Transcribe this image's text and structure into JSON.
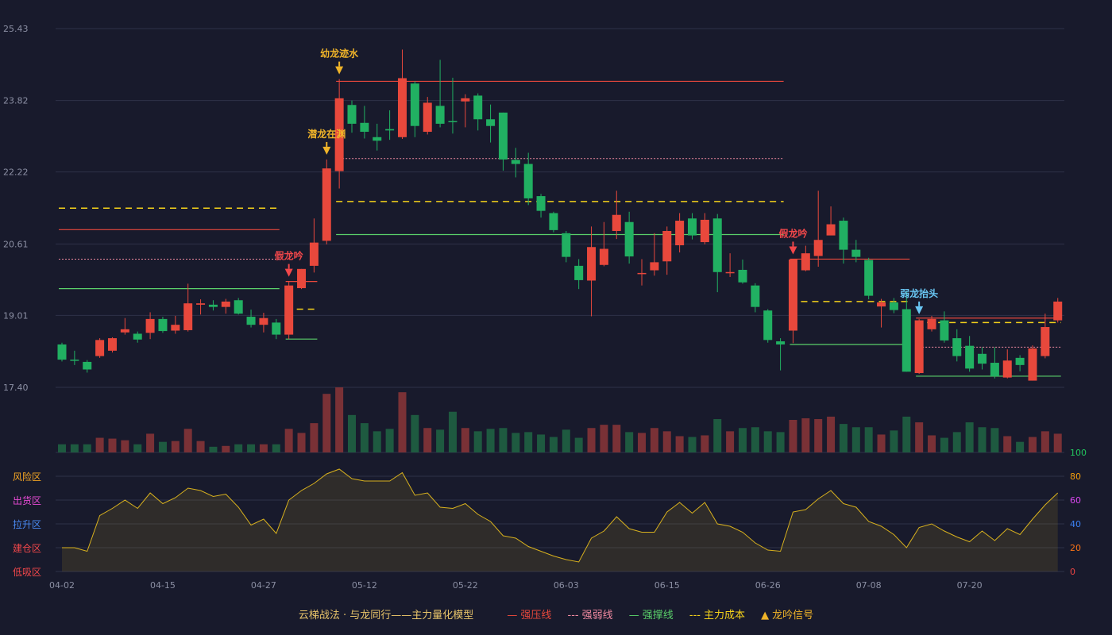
{
  "colors": {
    "background": "#181a2c",
    "up": "#e8483c",
    "down": "#21b062",
    "vol_up": "#7a3136",
    "vol_down": "#1e5a40",
    "resistance": "#e8483c",
    "weak": "#f08aa0",
    "support": "#5ad06a",
    "cost": "#f5d21a",
    "signal_gold": "#f0b429",
    "signal_red": "#f2474a",
    "signal_blue": "#6ac8f5",
    "grid": "#2e3148",
    "axis_text": "#8b8fa3",
    "osc_line": "#d8b11e"
  },
  "chart_data": {
    "type": "candlestick",
    "price_axis": {
      "ticks": [
        "25.43",
        "23.82",
        "22.22",
        "20.61",
        "19.01",
        "17.40"
      ],
      "ylim": [
        17.4,
        25.43
      ]
    },
    "x_ticks": [
      {
        "index": 0,
        "label": "04-02"
      },
      {
        "index": 8,
        "label": "04-15"
      },
      {
        "index": 16,
        "label": "04-27"
      },
      {
        "index": 24,
        "label": "05-12"
      },
      {
        "index": 32,
        "label": "05-22"
      },
      {
        "index": 40,
        "label": "06-03"
      },
      {
        "index": 48,
        "label": "06-15"
      },
      {
        "index": 56,
        "label": "06-26"
      },
      {
        "index": 64,
        "label": "07-08"
      },
      {
        "index": 72,
        "label": "07-20"
      }
    ],
    "candles": [
      [
        18.36,
        18.02,
        18.4,
        17.98
      ],
      [
        18.02,
        18.0,
        18.22,
        17.9
      ],
      [
        17.97,
        17.8,
        18.01,
        17.73
      ],
      [
        18.1,
        18.46,
        18.5,
        18.06
      ],
      [
        18.22,
        18.5,
        18.52,
        18.18
      ],
      [
        18.63,
        18.7,
        18.95,
        18.58
      ],
      [
        18.6,
        18.47,
        18.65,
        18.4
      ],
      [
        18.62,
        18.93,
        19.08,
        18.48
      ],
      [
        18.93,
        18.66,
        18.98,
        18.62
      ],
      [
        18.67,
        18.8,
        19.0,
        18.6
      ],
      [
        18.68,
        19.28,
        19.72,
        18.65
      ],
      [
        19.25,
        19.28,
        19.37,
        19.03
      ],
      [
        19.25,
        19.2,
        19.35,
        19.12
      ],
      [
        19.2,
        19.32,
        19.38,
        19.05
      ],
      [
        19.35,
        19.05,
        19.4,
        19.03
      ],
      [
        18.98,
        18.8,
        19.14,
        18.74
      ],
      [
        18.8,
        18.95,
        19.07,
        18.63
      ],
      [
        18.85,
        18.58,
        18.93,
        18.48
      ],
      [
        18.58,
        19.68,
        19.77,
        18.48
      ],
      [
        19.62,
        20.05,
        20.05,
        19.6
      ],
      [
        20.12,
        20.64,
        21.18,
        19.97
      ],
      [
        20.68,
        22.3,
        22.5,
        20.6
      ],
      [
        22.24,
        23.87,
        24.3,
        21.85
      ],
      [
        23.72,
        23.3,
        23.82,
        23.1
      ],
      [
        23.32,
        23.12,
        23.7,
        22.97
      ],
      [
        23.0,
        22.92,
        23.3,
        22.7
      ],
      [
        23.18,
        23.15,
        23.6,
        22.94
      ],
      [
        23.0,
        24.32,
        24.96,
        22.96
      ],
      [
        24.2,
        23.25,
        24.25,
        23.0
      ],
      [
        23.12,
        23.77,
        23.9,
        23.06
      ],
      [
        23.7,
        23.3,
        24.73,
        23.22
      ],
      [
        23.36,
        23.35,
        24.33,
        23.08
      ],
      [
        23.8,
        23.87,
        23.96,
        23.22
      ],
      [
        23.93,
        23.4,
        23.98,
        23.15
      ],
      [
        23.4,
        23.25,
        23.73,
        22.88
      ],
      [
        23.55,
        22.5,
        23.55,
        22.25
      ],
      [
        22.49,
        22.4,
        22.76,
        22.1
      ],
      [
        22.4,
        21.63,
        22.65,
        21.48
      ],
      [
        21.68,
        21.35,
        21.73,
        21.2
      ],
      [
        21.3,
        20.92,
        21.33,
        20.87
      ],
      [
        20.85,
        20.32,
        20.9,
        20.2
      ],
      [
        20.12,
        19.8,
        20.27,
        19.6
      ],
      [
        19.79,
        20.54,
        21.0,
        18.99
      ],
      [
        20.14,
        20.5,
        21.1,
        20.11
      ],
      [
        20.9,
        21.26,
        21.8,
        20.72
      ],
      [
        21.1,
        20.33,
        21.33,
        20.17
      ],
      [
        19.95,
        19.96,
        20.27,
        19.68
      ],
      [
        20.02,
        20.2,
        20.85,
        19.9
      ],
      [
        20.22,
        20.9,
        21.0,
        19.92
      ],
      [
        20.58,
        21.13,
        21.3,
        20.42
      ],
      [
        21.18,
        20.8,
        21.3,
        20.71
      ],
      [
        20.65,
        21.15,
        21.3,
        20.6
      ],
      [
        21.18,
        19.98,
        21.28,
        19.53
      ],
      [
        19.98,
        19.98,
        20.4,
        19.87
      ],
      [
        20.03,
        19.75,
        20.26,
        19.72
      ],
      [
        19.68,
        19.2,
        19.73,
        19.08
      ],
      [
        19.12,
        18.46,
        19.15,
        18.4
      ],
      [
        18.43,
        18.36,
        18.5,
        17.78
      ],
      [
        18.67,
        20.26,
        20.27,
        18.39
      ],
      [
        20.02,
        20.4,
        20.57,
        20.0
      ],
      [
        20.34,
        20.7,
        21.8,
        20.1
      ],
      [
        20.8,
        21.05,
        21.45,
        20.82
      ],
      [
        21.13,
        20.48,
        21.2,
        20.17
      ],
      [
        20.48,
        20.32,
        20.7,
        20.2
      ],
      [
        20.25,
        19.45,
        20.3,
        19.37
      ],
      [
        19.21,
        19.3,
        19.38,
        18.74
      ],
      [
        19.3,
        19.13,
        19.4,
        19.06
      ],
      [
        19.15,
        17.75,
        19.55,
        17.75
      ],
      [
        17.72,
        18.9,
        18.93,
        17.7
      ],
      [
        18.7,
        18.93,
        19.0,
        18.65
      ],
      [
        18.9,
        18.45,
        19.1,
        18.4
      ],
      [
        18.5,
        18.1,
        18.7,
        17.98
      ],
      [
        18.33,
        17.82,
        18.55,
        17.75
      ],
      [
        18.15,
        17.93,
        18.3,
        17.8
      ],
      [
        17.95,
        17.65,
        18.3,
        17.6
      ],
      [
        17.62,
        18.0,
        18.25,
        17.6
      ],
      [
        18.06,
        17.9,
        18.12,
        17.76
      ],
      [
        17.55,
        18.27,
        18.34,
        17.55
      ],
      [
        18.1,
        18.75,
        19.05,
        18.05
      ],
      [
        18.9,
        19.32,
        19.4,
        18.85
      ]
    ],
    "volume": [
      10,
      10,
      10,
      18,
      17,
      15,
      10,
      23,
      13,
      14,
      29,
      14,
      7,
      8,
      10,
      10,
      10,
      10,
      29,
      24,
      36,
      72,
      80,
      46,
      36,
      26,
      29,
      74,
      46,
      30,
      28,
      50,
      30,
      26,
      29,
      30,
      24,
      25,
      22,
      19,
      28,
      18,
      30,
      34,
      34,
      25,
      24,
      30,
      26,
      20,
      19,
      21,
      41,
      26,
      30,
      31,
      26,
      25,
      40,
      42,
      41,
      44,
      35,
      31,
      31,
      22,
      27,
      44,
      37,
      21,
      18,
      25,
      37,
      31,
      30,
      20,
      13,
      19,
      26,
      23
    ],
    "lines": [
      {
        "kind": "resistance",
        "y": 20.93,
        "from": 0,
        "to": 17
      },
      {
        "kind": "weak",
        "y": 20.27,
        "from": 0,
        "to": 17
      },
      {
        "kind": "cost",
        "y": 21.41,
        "from": 0,
        "to": 17
      },
      {
        "kind": "support",
        "y": 19.61,
        "from": 0,
        "to": 17
      },
      {
        "kind": "resistance",
        "y": 19.77,
        "from": 18,
        "to": 20
      },
      {
        "kind": "cost",
        "y": 19.15,
        "from": 18,
        "to": 20
      },
      {
        "kind": "support",
        "y": 18.48,
        "from": 18,
        "to": 20
      },
      {
        "kind": "resistance",
        "y": 24.25,
        "from": 22,
        "to": 57
      },
      {
        "kind": "weak",
        "y": 22.52,
        "from": 22,
        "to": 57
      },
      {
        "kind": "cost",
        "y": 21.56,
        "from": 22,
        "to": 57
      },
      {
        "kind": "support",
        "y": 20.82,
        "from": 22,
        "to": 57
      },
      {
        "kind": "resistance",
        "y": 20.27,
        "from": 58,
        "to": 67
      },
      {
        "kind": "cost",
        "y": 19.32,
        "from": 58,
        "to": 67
      },
      {
        "kind": "support",
        "y": 18.36,
        "from": 58,
        "to": 67
      },
      {
        "kind": "resistance",
        "y": 18.95,
        "from": 68,
        "to": 79
      },
      {
        "kind": "weak",
        "y": 18.3,
        "from": 68,
        "to": 79
      },
      {
        "kind": "cost",
        "y": 18.85,
        "from": 68,
        "to": 79
      },
      {
        "kind": "support",
        "y": 17.65,
        "from": 68,
        "to": 79
      }
    ],
    "signals": [
      {
        "index": 18,
        "text": "假龙吟",
        "color": "red"
      },
      {
        "index": 21,
        "text": "潜龙在渊",
        "color": "gold"
      },
      {
        "index": 22,
        "text": "幼龙迹水",
        "color": "gold"
      },
      {
        "index": 58,
        "text": "假龙吟",
        "color": "red"
      },
      {
        "index": 68,
        "text": "弱龙抬头",
        "color": "blue"
      }
    ],
    "oscillator": {
      "ticks": [
        "100",
        "80",
        "60",
        "40",
        "20",
        "0"
      ],
      "tick_colors": [
        "#22c55e",
        "#f59e0b",
        "#d946ef",
        "#3b82f6",
        "#f97316",
        "#ef4444"
      ],
      "zones": [
        {
          "label": "风险区",
          "color": "#f5a623"
        },
        {
          "label": "出货区",
          "color": "#e94bd6"
        },
        {
          "label": "拉升区",
          "color": "#4a8cf5"
        },
        {
          "label": "建仓区",
          "color": "#f2474a"
        },
        {
          "label": "低吸区",
          "color": "#f2474a"
        }
      ],
      "values": [
        20,
        20,
        17,
        47,
        53,
        60,
        53,
        66,
        57,
        62,
        70,
        68,
        63,
        65,
        54,
        39,
        44,
        32,
        60,
        68,
        74,
        82,
        86,
        78,
        76,
        76,
        76,
        83,
        64,
        66,
        54,
        53,
        57,
        48,
        42,
        30,
        28,
        21,
        17,
        13,
        10,
        8,
        28,
        34,
        46,
        36,
        33,
        33,
        50,
        58,
        49,
        58,
        40,
        38,
        33,
        24,
        18,
        17,
        50,
        52,
        61,
        68,
        57,
        54,
        42,
        38,
        31,
        20,
        37,
        40,
        34,
        29,
        25,
        34,
        26,
        36,
        31,
        44,
        56,
        66
      ]
    },
    "legend": {
      "title": "云梯战法 · 与龙同行——主力量化模型",
      "items": [
        {
          "label": "强压线",
          "symbol": "—",
          "color": "#e8483c"
        },
        {
          "label": "强弱线",
          "symbol": "---",
          "color": "#f08aa0"
        },
        {
          "label": "强撑线",
          "symbol": "—",
          "color": "#5ad06a"
        },
        {
          "label": "主力成本",
          "symbol": "---",
          "color": "#f5d21a"
        },
        {
          "label": "龙吟信号",
          "symbol": "▲",
          "color": "#f0b429"
        }
      ]
    }
  }
}
